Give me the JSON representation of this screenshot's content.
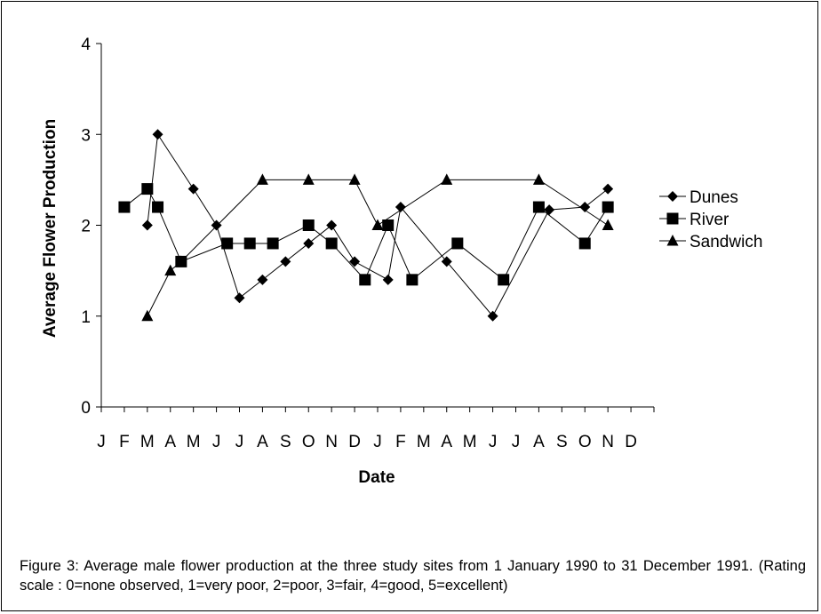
{
  "chart_data": {
    "type": "line",
    "title": "",
    "xlabel": "Date",
    "ylabel": "Average Flower Production",
    "ylim": [
      0,
      4
    ],
    "yticks": [
      0,
      1,
      2,
      3,
      4
    ],
    "x_range": [
      "1990-01",
      "1991-12"
    ],
    "month_labels": [
      "J",
      "F",
      "M",
      "A",
      "M",
      "J",
      "J",
      "A",
      "S",
      "O",
      "N",
      "D",
      "J",
      "F",
      "M",
      "A",
      "M",
      "J",
      "J",
      "A",
      "S",
      "O",
      "N",
      "D"
    ],
    "legend_position": "right",
    "grid": false,
    "series": [
      {
        "name": "Dunes",
        "marker": "diamond",
        "points": [
          {
            "x": "1990-03",
            "y": 2.0
          },
          {
            "x": "1990-03-15",
            "y": 3.0
          },
          {
            "x": "1990-05",
            "y": 2.4
          },
          {
            "x": "1990-06",
            "y": 2.0
          },
          {
            "x": "1990-07",
            "y": 1.2
          },
          {
            "x": "1990-08",
            "y": 1.4
          },
          {
            "x": "1990-09",
            "y": 1.6
          },
          {
            "x": "1990-10",
            "y": 1.8
          },
          {
            "x": "1990-11",
            "y": 2.0
          },
          {
            "x": "1990-12",
            "y": 1.6
          },
          {
            "x": "1991-01-15",
            "y": 1.4
          },
          {
            "x": "1991-02",
            "y": 2.2
          },
          {
            "x": "1991-04",
            "y": 1.6
          },
          {
            "x": "1991-06",
            "y": 1.0
          },
          {
            "x": "1991-08-15",
            "y": 2.17
          },
          {
            "x": "1991-10",
            "y": 2.2
          },
          {
            "x": "1991-11",
            "y": 2.4
          }
        ]
      },
      {
        "name": "River",
        "marker": "square",
        "points": [
          {
            "x": "1990-02",
            "y": 2.2
          },
          {
            "x": "1990-03",
            "y": 2.4
          },
          {
            "x": "1990-03-15",
            "y": 2.2
          },
          {
            "x": "1990-04-15",
            "y": 1.6
          },
          {
            "x": "1990-06-15",
            "y": 1.8
          },
          {
            "x": "1990-07-15",
            "y": 1.8
          },
          {
            "x": "1990-08-15",
            "y": 1.8
          },
          {
            "x": "1990-10",
            "y": 2.0
          },
          {
            "x": "1990-11",
            "y": 1.8
          },
          {
            "x": "1990-12-15",
            "y": 1.4
          },
          {
            "x": "1991-01-15",
            "y": 2.0
          },
          {
            "x": "1991-02-15",
            "y": 1.4
          },
          {
            "x": "1991-04-15",
            "y": 1.8
          },
          {
            "x": "1991-06-15",
            "y": 1.4
          },
          {
            "x": "1991-08",
            "y": 2.2
          },
          {
            "x": "1991-10",
            "y": 1.8
          },
          {
            "x": "1991-11",
            "y": 2.2
          }
        ]
      },
      {
        "name": "Sandwich",
        "marker": "triangle",
        "points": [
          {
            "x": "1990-03",
            "y": 1.0
          },
          {
            "x": "1990-04",
            "y": 1.5
          },
          {
            "x": "1990-04-15",
            "y": 1.6
          },
          {
            "x": "1990-08",
            "y": 2.5
          },
          {
            "x": "1990-10",
            "y": 2.5
          },
          {
            "x": "1990-12",
            "y": 2.5
          },
          {
            "x": "1991-01",
            "y": 2.0
          },
          {
            "x": "1991-04",
            "y": 2.5
          },
          {
            "x": "1991-08",
            "y": 2.5
          },
          {
            "x": "1991-11",
            "y": 2.0
          }
        ]
      }
    ]
  },
  "caption": "Figure 3:  Average male flower production at the three study sites from 1 January 1990 to 31 December 1991. (Rating scale : 0=none observed, 1=very poor, 2=poor, 3=fair, 4=good, 5=excellent)"
}
